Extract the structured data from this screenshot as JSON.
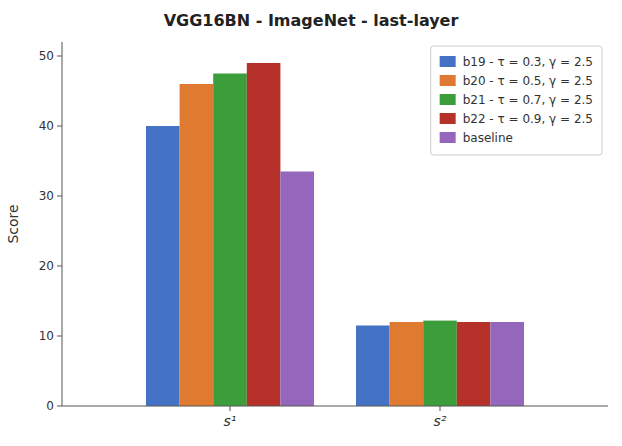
{
  "chart_data": {
    "type": "bar",
    "title": "VGG16BN - ImageNet - last-layer",
    "ylabel": "Score",
    "categories": [
      "s¹",
      "s²"
    ],
    "series": [
      {
        "name": "b19 - τ = 0.3, γ = 2.5",
        "color": "#4472c4",
        "values": [
          40.0,
          11.5
        ]
      },
      {
        "name": "b20 - τ = 0.5, γ = 2.5",
        "color": "#e07a30",
        "values": [
          46.0,
          12.0
        ]
      },
      {
        "name": "b21 - τ = 0.7, γ = 2.5",
        "color": "#3b9e3b",
        "values": [
          47.5,
          12.2
        ]
      },
      {
        "name": "b22 - τ = 0.9, γ = 2.5",
        "color": "#b5312a",
        "values": [
          49.0,
          12.0
        ]
      },
      {
        "name": "baseline",
        "color": "#9467bd",
        "values": [
          33.5,
          12.0
        ]
      }
    ],
    "ylim": [
      0,
      52
    ],
    "yticks": [
      0,
      10,
      20,
      30,
      40,
      50
    ],
    "grid": false,
    "legend": "upper right"
  }
}
